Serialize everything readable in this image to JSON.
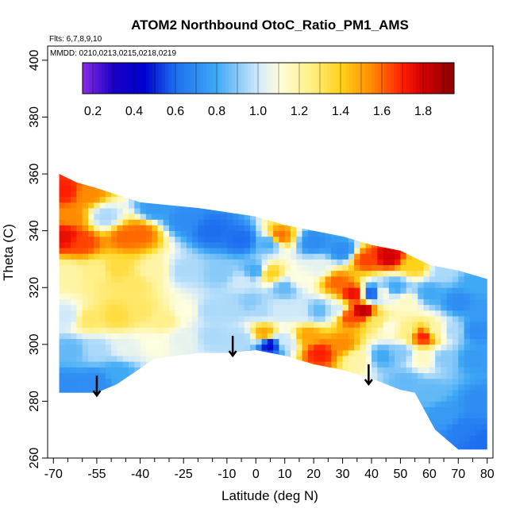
{
  "chart_data": {
    "type": "heatmap",
    "title": "ATOM2 Northbound OtoC_Ratio_PM1_AMS",
    "flights_note": "Flts: 6,7,8,9,10",
    "dates_note": "MMDD: 0210,0213,0215,0218,0219",
    "xlabel": "Latitude (deg N)",
    "ylabel": "Theta (C)",
    "xlim": [
      -72,
      82
    ],
    "ylim": [
      260,
      405
    ],
    "x_ticks": [
      -70,
      -55,
      -40,
      -25,
      -10,
      0,
      10,
      20,
      30,
      40,
      50,
      60,
      70,
      80
    ],
    "x_tick_labels": [
      "-70",
      "-55",
      "-40",
      "-25",
      "-10",
      "0",
      "10",
      "20",
      "30",
      "40",
      "50",
      "60",
      "70",
      "80"
    ],
    "x_minor_ticks": [
      -65,
      -60,
      -50,
      -45,
      -35,
      -30,
      -20,
      -15,
      -5,
      5,
      15,
      25,
      35,
      45,
      55,
      65,
      75
    ],
    "y_ticks": [
      260,
      280,
      300,
      320,
      340,
      360,
      380,
      400
    ],
    "y_tick_labels": [
      "260",
      "280",
      "300",
      "320",
      "340",
      "360",
      "380",
      "400"
    ],
    "colorbar": {
      "range": [
        0.15,
        1.95
      ],
      "ticks": [
        0.2,
        0.4,
        0.6,
        0.8,
        1.0,
        1.2,
        1.4,
        1.6,
        1.8
      ],
      "tick_labels": [
        "0.2",
        "0.4",
        "0.6",
        "0.8",
        "1.0",
        "1.2",
        "1.4",
        "1.6",
        "1.8"
      ],
      "stops": [
        {
          "v": 0.15,
          "color": "#8a2be2"
        },
        {
          "v": 0.3,
          "color": "#1a00c8"
        },
        {
          "v": 0.45,
          "color": "#0000cd"
        },
        {
          "v": 0.6,
          "color": "#1e6ff0"
        },
        {
          "v": 0.8,
          "color": "#3fa9f5"
        },
        {
          "v": 1.0,
          "color": "#cfe9fb"
        },
        {
          "v": 1.1,
          "color": "#fdfde0"
        },
        {
          "v": 1.25,
          "color": "#fff08a"
        },
        {
          "v": 1.4,
          "color": "#ffd21a"
        },
        {
          "v": 1.55,
          "color": "#ff8c00"
        },
        {
          "v": 1.7,
          "color": "#ff1e00"
        },
        {
          "v": 1.8,
          "color": "#d20000"
        },
        {
          "v": 1.95,
          "color": "#8b0000"
        }
      ]
    },
    "data_envelope": [
      [
        -68,
        283
      ],
      [
        -55,
        283
      ],
      [
        -48,
        286
      ],
      [
        -35,
        295
      ],
      [
        -20,
        297
      ],
      [
        -10,
        297
      ],
      [
        0,
        298
      ],
      [
        10,
        296
      ],
      [
        20,
        293
      ],
      [
        30,
        291
      ],
      [
        40,
        288
      ],
      [
        50,
        284
      ],
      [
        55,
        283
      ],
      [
        62,
        270
      ],
      [
        70,
        263
      ],
      [
        80,
        263
      ],
      [
        80,
        323
      ],
      [
        70,
        326
      ],
      [
        60,
        328
      ],
      [
        50,
        333
      ],
      [
        40,
        335
      ],
      [
        30,
        338
      ],
      [
        20,
        340
      ],
      [
        10,
        342
      ],
      [
        0,
        345
      ],
      [
        -20,
        348
      ],
      [
        -40,
        350
      ],
      [
        -55,
        355
      ],
      [
        -62,
        357
      ],
      [
        -68,
        360
      ]
    ],
    "ratio_cells": [
      {
        "lat": -66,
        "theta": 354,
        "value": 1.7
      },
      {
        "lat": -64,
        "theta": 345,
        "value": 1.55
      },
      {
        "lat": -58,
        "theta": 353,
        "value": 1.55
      },
      {
        "lat": -66,
        "theta": 338,
        "value": 1.75
      },
      {
        "lat": -60,
        "theta": 336,
        "value": 1.65
      },
      {
        "lat": -52,
        "theta": 345,
        "value": 0.95
      },
      {
        "lat": -45,
        "theta": 338,
        "value": 1.6
      },
      {
        "lat": -40,
        "theta": 339,
        "value": 1.6
      },
      {
        "lat": -35,
        "theta": 348,
        "value": 0.75
      },
      {
        "lat": -25,
        "theta": 344,
        "value": 0.7
      },
      {
        "lat": -15,
        "theta": 340,
        "value": 0.6
      },
      {
        "lat": -5,
        "theta": 337,
        "value": 0.6
      },
      {
        "lat": 5,
        "theta": 336,
        "value": 0.8
      },
      {
        "lat": 8,
        "theta": 338,
        "value": 1.6
      },
      {
        "lat": 20,
        "theta": 336,
        "value": 0.7
      },
      {
        "lat": 30,
        "theta": 333,
        "value": 0.7
      },
      {
        "lat": 38,
        "theta": 330,
        "value": 1.65
      },
      {
        "lat": 46,
        "theta": 331,
        "value": 1.8
      },
      {
        "lat": 55,
        "theta": 328,
        "value": 1.4
      },
      {
        "lat": 65,
        "theta": 326,
        "value": 0.95
      },
      {
        "lat": 76,
        "theta": 322,
        "value": 0.8
      },
      {
        "lat": -65,
        "theta": 325,
        "value": 1.2
      },
      {
        "lat": -55,
        "theta": 326,
        "value": 1.25
      },
      {
        "lat": -48,
        "theta": 327,
        "value": 1.35
      },
      {
        "lat": -42,
        "theta": 321,
        "value": 1.3
      },
      {
        "lat": -35,
        "theta": 326,
        "value": 1.2
      },
      {
        "lat": -25,
        "theta": 326,
        "value": 0.95
      },
      {
        "lat": -12,
        "theta": 325,
        "value": 0.9
      },
      {
        "lat": -5,
        "theta": 322,
        "value": 1.0
      },
      {
        "lat": 0,
        "theta": 326,
        "value": 0.8
      },
      {
        "lat": 5,
        "theta": 325,
        "value": 1.4
      },
      {
        "lat": 10,
        "theta": 320,
        "value": 0.85
      },
      {
        "lat": 15,
        "theta": 323,
        "value": 1.1
      },
      {
        "lat": 22,
        "theta": 327,
        "value": 1.05
      },
      {
        "lat": 28,
        "theta": 322,
        "value": 1.6
      },
      {
        "lat": 34,
        "theta": 318,
        "value": 1.75
      },
      {
        "lat": 37,
        "theta": 312,
        "value": 1.85
      },
      {
        "lat": 40,
        "theta": 318,
        "value": 0.55
      },
      {
        "lat": 44,
        "theta": 318,
        "value": 1.1
      },
      {
        "lat": 48,
        "theta": 320,
        "value": 0.8
      },
      {
        "lat": 52,
        "theta": 315,
        "value": 1.15
      },
      {
        "lat": 60,
        "theta": 318,
        "value": 0.8
      },
      {
        "lat": 70,
        "theta": 315,
        "value": 0.7
      },
      {
        "lat": 78,
        "theta": 312,
        "value": 0.75
      },
      {
        "lat": -65,
        "theta": 310,
        "value": 1.0
      },
      {
        "lat": -58,
        "theta": 309,
        "value": 1.3
      },
      {
        "lat": -48,
        "theta": 310,
        "value": 1.35
      },
      {
        "lat": -40,
        "theta": 312,
        "value": 1.3
      },
      {
        "lat": -32,
        "theta": 309,
        "value": 1.25
      },
      {
        "lat": -24,
        "theta": 312,
        "value": 1.1
      },
      {
        "lat": -16,
        "theta": 312,
        "value": 0.95
      },
      {
        "lat": -8,
        "theta": 313,
        "value": 0.95
      },
      {
        "lat": -2,
        "theta": 315,
        "value": 0.9
      },
      {
        "lat": 2,
        "theta": 312,
        "value": 0.95
      },
      {
        "lat": 8,
        "theta": 312,
        "value": 1.0
      },
      {
        "lat": 15,
        "theta": 312,
        "value": 1.0
      },
      {
        "lat": 22,
        "theta": 312,
        "value": 0.85
      },
      {
        "lat": 28,
        "theta": 312,
        "value": 1.0
      },
      {
        "lat": 32,
        "theta": 310,
        "value": 1.65
      },
      {
        "lat": 42,
        "theta": 308,
        "value": 1.3
      },
      {
        "lat": 46,
        "theta": 306,
        "value": 1.1
      },
      {
        "lat": 52,
        "theta": 305,
        "value": 1.25
      },
      {
        "lat": 58,
        "theta": 303,
        "value": 1.7
      },
      {
        "lat": 62,
        "theta": 305,
        "value": 1.2
      },
      {
        "lat": 68,
        "theta": 305,
        "value": 0.95
      },
      {
        "lat": 76,
        "theta": 305,
        "value": 0.7
      },
      {
        "lat": -64,
        "theta": 298,
        "value": 0.85
      },
      {
        "lat": -55,
        "theta": 298,
        "value": 0.95
      },
      {
        "lat": -45,
        "theta": 299,
        "value": 1.05
      },
      {
        "lat": -35,
        "theta": 300,
        "value": 1.1
      },
      {
        "lat": -25,
        "theta": 302,
        "value": 1.05
      },
      {
        "lat": -15,
        "theta": 303,
        "value": 0.95
      },
      {
        "lat": -5,
        "theta": 302,
        "value": 0.95
      },
      {
        "lat": 3,
        "theta": 304,
        "value": 1.5
      },
      {
        "lat": 5,
        "theta": 300,
        "value": 0.45
      },
      {
        "lat": 10,
        "theta": 301,
        "value": 1.0
      },
      {
        "lat": 18,
        "theta": 303,
        "value": 1.5
      },
      {
        "lat": 22,
        "theta": 297,
        "value": 1.7
      },
      {
        "lat": 30,
        "theta": 300,
        "value": 1.55
      },
      {
        "lat": 35,
        "theta": 295,
        "value": 1.2
      },
      {
        "lat": 44,
        "theta": 296,
        "value": 0.8
      },
      {
        "lat": 50,
        "theta": 297,
        "value": 0.9
      },
      {
        "lat": 58,
        "theta": 295,
        "value": 1.15
      },
      {
        "lat": 65,
        "theta": 295,
        "value": 0.9
      },
      {
        "lat": 75,
        "theta": 295,
        "value": 0.75
      },
      {
        "lat": -65,
        "theta": 286,
        "value": 0.7
      },
      {
        "lat": -55,
        "theta": 287,
        "value": 0.7
      },
      {
        "lat": -48,
        "theta": 290,
        "value": 0.8
      },
      {
        "lat": 52,
        "theta": 287,
        "value": 0.85
      },
      {
        "lat": 60,
        "theta": 283,
        "value": 0.85
      },
      {
        "lat": 65,
        "theta": 275,
        "value": 0.75
      },
      {
        "lat": 72,
        "theta": 270,
        "value": 0.65
      },
      {
        "lat": 78,
        "theta": 266,
        "value": 0.6
      },
      {
        "lat": 78,
        "theta": 280,
        "value": 0.7
      }
    ],
    "annotations": [
      {
        "type": "arrow-down",
        "lat": -55,
        "theta_top": 289,
        "theta_bottom": 282
      },
      {
        "type": "arrow-down",
        "lat": -8,
        "theta_top": 303,
        "theta_bottom": 296
      },
      {
        "type": "arrow-down",
        "lat": 39,
        "theta_top": 293,
        "theta_bottom": 286
      }
    ]
  }
}
